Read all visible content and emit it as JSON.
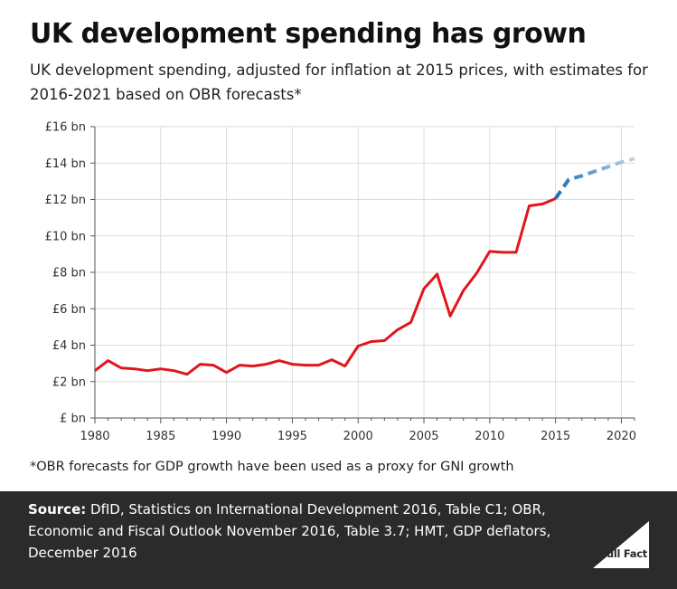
{
  "header": {
    "title": "UK development spending has grown",
    "subtitle": "UK development spending, adjusted for inflation at 2015 prices, with estimates for 2016-2021 based on OBR forecasts*"
  },
  "footnote": "*OBR forecasts for GDP growth have been used as a proxy for GNI growth",
  "source": {
    "label": "Source:",
    "text": " DfID, Statistics on International Development 2016, Table C1; OBR, Economic and Fiscal Outlook November 2016, Table 3.7; HMT, GDP deflators, December 2016"
  },
  "logo": {
    "text": "Full Fact"
  },
  "chart_data": {
    "type": "line",
    "title": "UK development spending has grown",
    "subtitle": "UK development spending, adjusted for inflation at 2015 prices, with estimates for 2016-2021 based on OBR forecasts*",
    "xlabel": "",
    "ylabel": "",
    "xlim": [
      1980,
      2021
    ],
    "ylim": [
      0,
      16
    ],
    "x_ticks": [
      1980,
      1985,
      1990,
      1995,
      2000,
      2005,
      2010,
      2015,
      2020
    ],
    "y_ticks": [
      0,
      2,
      4,
      6,
      8,
      10,
      12,
      14,
      16
    ],
    "y_tick_labels": [
      "£ bn",
      "£2 bn",
      "£4 bn",
      "£6 bn",
      "£8 bn",
      "£10 bn",
      "£12 bn",
      "£14 bn",
      "£16 bn"
    ],
    "grid": true,
    "legend": "none",
    "series": [
      {
        "style": "solid",
        "color": "#e0161d",
        "x": [
          1980,
          1981,
          1982,
          1983,
          1984,
          1985,
          1986,
          1987,
          1988,
          1989,
          1990,
          1991,
          1992,
          1993,
          1994,
          1995,
          1996,
          1997,
          1998,
          1999,
          2000,
          2001,
          2002,
          2003,
          2004,
          2005,
          2006,
          2007,
          2008,
          2009,
          2010,
          2011,
          2012,
          2013,
          2014,
          2015
        ],
        "y": [
          2.6,
          3.15,
          2.75,
          2.7,
          2.6,
          2.7,
          2.6,
          2.4,
          2.95,
          2.9,
          2.5,
          2.9,
          2.85,
          2.95,
          3.15,
          2.95,
          2.9,
          2.9,
          3.2,
          2.85,
          3.95,
          4.2,
          4.25,
          4.85,
          5.25,
          7.1,
          7.9,
          5.6,
          7.0,
          7.95,
          9.15,
          9.1,
          9.1,
          11.65,
          11.75,
          12.05
        ]
      },
      {
        "style": "dashed",
        "color_gradient": [
          "#1f6fb4",
          "#bcd8ec"
        ],
        "x": [
          2015,
          2016,
          2017,
          2018,
          2019,
          2020,
          2021
        ],
        "y": [
          12.05,
          13.1,
          13.3,
          13.55,
          13.8,
          14.05,
          14.25
        ]
      }
    ]
  }
}
